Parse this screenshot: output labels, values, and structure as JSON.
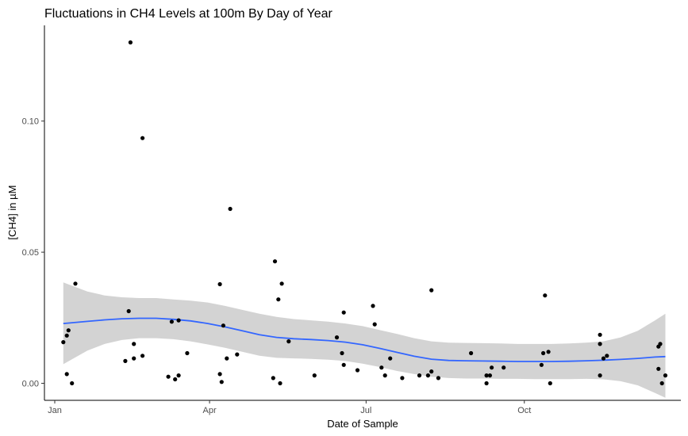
{
  "chart_data": {
    "type": "scatter",
    "title": "Fluctuations in CH4 Levels at 100m By Day of Year",
    "xlabel": "Date of Sample",
    "ylabel": "[CH4] in µM",
    "x_unit": "day of year",
    "xlim": [
      -5,
      365
    ],
    "ylim": [
      -0.0065,
      0.1365
    ],
    "x_ticks": [
      {
        "value": 1,
        "label": "Jan"
      },
      {
        "value": 91,
        "label": "Apr"
      },
      {
        "value": 182,
        "label": "Jul"
      },
      {
        "value": 274,
        "label": "Oct"
      }
    ],
    "y_ticks": [
      {
        "value": 0.0,
        "label": "0.00"
      },
      {
        "value": 0.05,
        "label": "0.05"
      },
      {
        "value": 0.1,
        "label": "0.10"
      }
    ],
    "grid": false,
    "points": [
      {
        "x": 6,
        "y": 0.0157
      },
      {
        "x": 8,
        "y": 0.0035
      },
      {
        "x": 8,
        "y": 0.0182
      },
      {
        "x": 9,
        "y": 0.0202
      },
      {
        "x": 11,
        "y": 0.0
      },
      {
        "x": 13,
        "y": 0.038
      },
      {
        "x": 42,
        "y": 0.0085
      },
      {
        "x": 44,
        "y": 0.0275
      },
      {
        "x": 45,
        "y": 0.13
      },
      {
        "x": 47,
        "y": 0.015
      },
      {
        "x": 47,
        "y": 0.0095
      },
      {
        "x": 52,
        "y": 0.0105
      },
      {
        "x": 52,
        "y": 0.0935
      },
      {
        "x": 67,
        "y": 0.0025
      },
      {
        "x": 69,
        "y": 0.0235
      },
      {
        "x": 71,
        "y": 0.0015
      },
      {
        "x": 73,
        "y": 0.024
      },
      {
        "x": 73,
        "y": 0.003
      },
      {
        "x": 78,
        "y": 0.0115
      },
      {
        "x": 97,
        "y": 0.0378
      },
      {
        "x": 97,
        "y": 0.0035
      },
      {
        "x": 98,
        "y": 0.0005
      },
      {
        "x": 99,
        "y": 0.022
      },
      {
        "x": 101,
        "y": 0.0095
      },
      {
        "x": 103,
        "y": 0.0665
      },
      {
        "x": 107,
        "y": 0.011
      },
      {
        "x": 128,
        "y": 0.002
      },
      {
        "x": 129,
        "y": 0.0465
      },
      {
        "x": 131,
        "y": 0.032
      },
      {
        "x": 132,
        "y": 0.0
      },
      {
        "x": 133,
        "y": 0.038
      },
      {
        "x": 137,
        "y": 0.016
      },
      {
        "x": 152,
        "y": 0.003
      },
      {
        "x": 165,
        "y": 0.0175
      },
      {
        "x": 168,
        "y": 0.0115
      },
      {
        "x": 169,
        "y": 0.027
      },
      {
        "x": 169,
        "y": 0.007
      },
      {
        "x": 177,
        "y": 0.005
      },
      {
        "x": 186,
        "y": 0.0295
      },
      {
        "x": 187,
        "y": 0.0225
      },
      {
        "x": 191,
        "y": 0.006
      },
      {
        "x": 193,
        "y": 0.003
      },
      {
        "x": 196,
        "y": 0.0095
      },
      {
        "x": 203,
        "y": 0.002
      },
      {
        "x": 213,
        "y": 0.003
      },
      {
        "x": 218,
        "y": 0.003
      },
      {
        "x": 220,
        "y": 0.0355
      },
      {
        "x": 220,
        "y": 0.0045
      },
      {
        "x": 224,
        "y": 0.002
      },
      {
        "x": 243,
        "y": 0.0115
      },
      {
        "x": 252,
        "y": 0.003
      },
      {
        "x": 252,
        "y": 0.0
      },
      {
        "x": 254,
        "y": 0.003
      },
      {
        "x": 255,
        "y": 0.006
      },
      {
        "x": 262,
        "y": 0.006
      },
      {
        "x": 284,
        "y": 0.007
      },
      {
        "x": 285,
        "y": 0.0115
      },
      {
        "x": 286,
        "y": 0.0335
      },
      {
        "x": 288,
        "y": 0.012
      },
      {
        "x": 289,
        "y": 0.0
      },
      {
        "x": 318,
        "y": 0.0185
      },
      {
        "x": 318,
        "y": 0.015
      },
      {
        "x": 318,
        "y": 0.003
      },
      {
        "x": 320,
        "y": 0.0095
      },
      {
        "x": 322,
        "y": 0.0105
      },
      {
        "x": 352,
        "y": 0.0055
      },
      {
        "x": 352,
        "y": 0.014
      },
      {
        "x": 353,
        "y": 0.015
      },
      {
        "x": 354,
        "y": 0.0
      },
      {
        "x": 356,
        "y": 0.003
      }
    ],
    "smooth": {
      "method": "loess",
      "color": "#3366FF",
      "band_color": "#D3D3D3",
      "x": [
        6,
        20,
        30,
        40,
        50,
        60,
        70,
        80,
        90,
        100,
        110,
        120,
        130,
        140,
        150,
        160,
        170,
        180,
        190,
        200,
        210,
        220,
        230,
        240,
        250,
        260,
        270,
        280,
        290,
        300,
        310,
        320,
        330,
        340,
        350,
        356
      ],
      "y": [
        0.0228,
        0.0236,
        0.0242,
        0.0246,
        0.0248,
        0.0248,
        0.0244,
        0.0238,
        0.0228,
        0.0215,
        0.02,
        0.0185,
        0.0175,
        0.017,
        0.0167,
        0.0163,
        0.0157,
        0.0147,
        0.0133,
        0.0118,
        0.0103,
        0.0092,
        0.0087,
        0.0086,
        0.0085,
        0.0084,
        0.0083,
        0.0083,
        0.0083,
        0.0084,
        0.0086,
        0.0088,
        0.0091,
        0.0095,
        0.01,
        0.0102
      ],
      "lower": [
        0.0073,
        0.0125,
        0.015,
        0.0165,
        0.0172,
        0.0172,
        0.0168,
        0.016,
        0.0148,
        0.0135,
        0.012,
        0.0105,
        0.0097,
        0.0095,
        0.0093,
        0.009,
        0.0085,
        0.0075,
        0.0062,
        0.0047,
        0.0035,
        0.0025,
        0.002,
        0.0018,
        0.0018,
        0.0017,
        0.0017,
        0.0016,
        0.0016,
        0.0016,
        0.0017,
        0.0015,
        0.0008,
        -0.0008,
        -0.0037,
        -0.0055
      ],
      "upper": [
        0.0385,
        0.035,
        0.0335,
        0.0328,
        0.0325,
        0.0325,
        0.032,
        0.0315,
        0.0308,
        0.0295,
        0.028,
        0.0265,
        0.0253,
        0.0245,
        0.024,
        0.0235,
        0.0228,
        0.0218,
        0.0203,
        0.0188,
        0.0172,
        0.016,
        0.0155,
        0.0154,
        0.0153,
        0.0152,
        0.015,
        0.015,
        0.015,
        0.0152,
        0.0155,
        0.016,
        0.0175,
        0.02,
        0.024,
        0.0265
      ]
    }
  }
}
